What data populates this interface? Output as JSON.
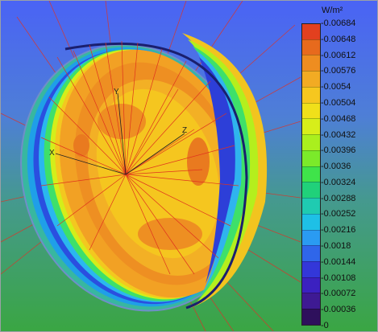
{
  "legend": {
    "unit": "W/m²",
    "ticks": [
      "0.00684",
      "0.00648",
      "0.00612",
      "0.00576",
      "0.0054",
      "0.00504",
      "0.00468",
      "0.00432",
      "0.00396",
      "0.0036",
      "0.00324",
      "0.00288",
      "0.00252",
      "0.00216",
      "0.0018",
      "0.00144",
      "0.00108",
      "0.00072",
      "0.00036",
      "0"
    ],
    "colors": [
      "#e2401f",
      "#e76a1d",
      "#ee8d20",
      "#f2ab23",
      "#f6c71f",
      "#f0e01a",
      "#d7ee1a",
      "#aaef1e",
      "#7bea2a",
      "#3fe34a",
      "#20d17a",
      "#1fcbb1",
      "#1ec0e6",
      "#2a9bf2",
      "#2f66ea",
      "#3337d9",
      "#3b21c0",
      "#3e1a93",
      "#2e105c"
    ]
  },
  "axes": {
    "x": "X",
    "y": "Y",
    "z": "Z"
  },
  "background": {
    "top": "#4e67f3",
    "bottom": "#3fa63e"
  },
  "ray_color": "#e0321e"
}
